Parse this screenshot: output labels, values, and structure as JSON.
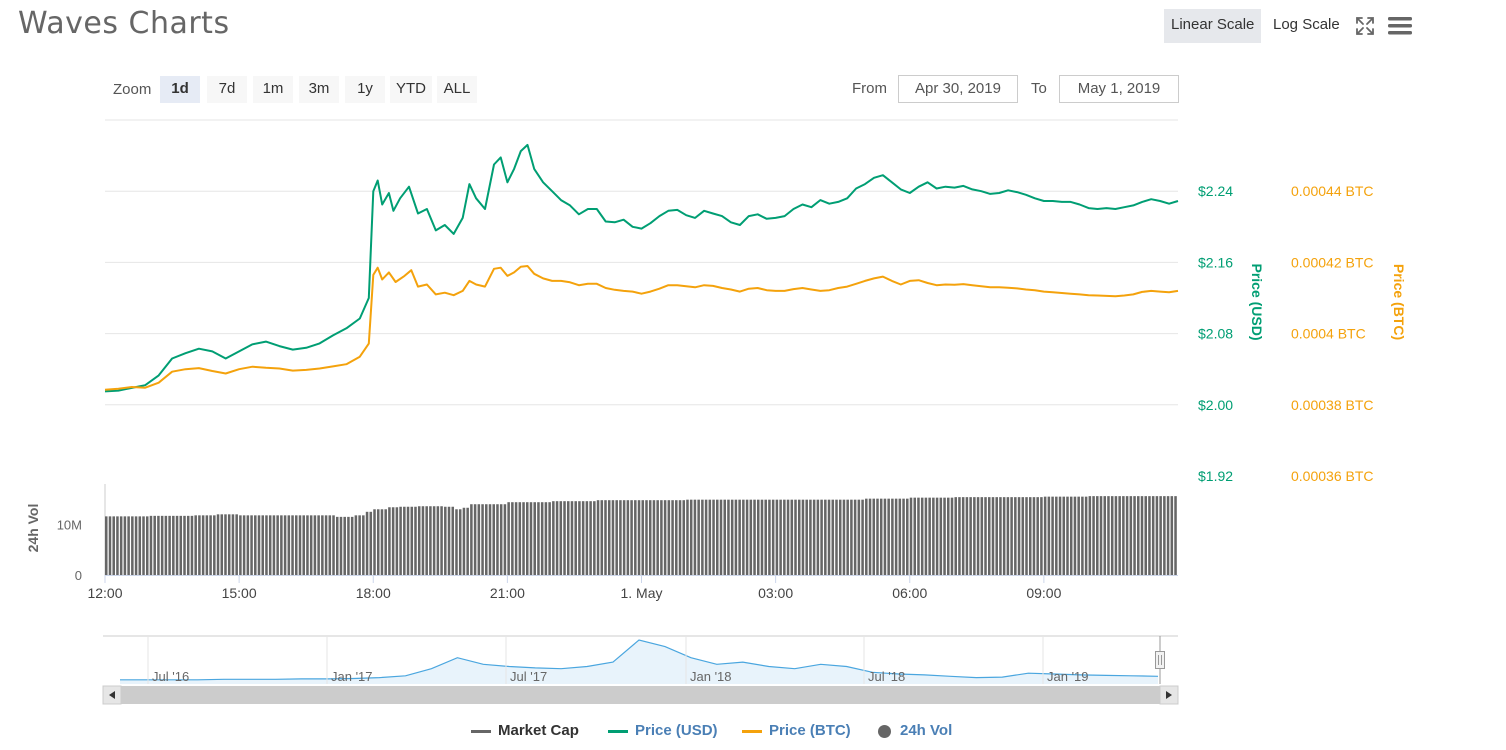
{
  "header": {
    "title": "Waves Charts",
    "scale_buttons": [
      {
        "label": "Linear Scale",
        "active": true
      },
      {
        "label": "Log Scale",
        "active": false
      }
    ],
    "icons": [
      "fullscreen-icon",
      "menu-icon"
    ]
  },
  "toolbar": {
    "zoom_label": "Zoom",
    "zoom_buttons": [
      {
        "label": "1d",
        "active": true
      },
      {
        "label": "7d",
        "active": false
      },
      {
        "label": "1m",
        "active": false
      },
      {
        "label": "3m",
        "active": false
      },
      {
        "label": "1y",
        "active": false
      },
      {
        "label": "YTD",
        "active": false
      },
      {
        "label": "ALL",
        "active": false
      }
    ],
    "from_label": "From",
    "from_value": "Apr 30, 2019",
    "to_label": "To",
    "to_value": "May 1, 2019"
  },
  "chart_data": {
    "type": "line",
    "x_ticks": [
      "12:00",
      "15:00",
      "18:00",
      "21:00",
      "1. May",
      "03:00",
      "06:00",
      "09:00"
    ],
    "x_tick_hours": [
      0,
      3,
      6,
      9,
      12,
      15,
      18,
      21
    ],
    "x_range_hours": [
      0,
      24
    ],
    "colors": {
      "usd": "#009e73",
      "btc": "#f4a20c",
      "vol": "#666666",
      "navigator": "#4aa6df",
      "market_cap": "#666666"
    },
    "price_usd": {
      "axis_label": "Price (USD)",
      "ylim": [
        1.92,
        2.32
      ],
      "ticks": [
        1.92,
        2.0,
        2.08,
        2.16,
        2.24
      ],
      "tick_labels": [
        "$1.92",
        "$2.00",
        "$2.08",
        "$2.16",
        "$2.24"
      ],
      "points": [
        [
          0,
          2.015
        ],
        [
          0.3,
          2.016
        ],
        [
          0.6,
          2.019
        ],
        [
          0.9,
          2.022
        ],
        [
          1.2,
          2.033
        ],
        [
          1.5,
          2.052
        ],
        [
          1.8,
          2.058
        ],
        [
          2.1,
          2.063
        ],
        [
          2.4,
          2.06
        ],
        [
          2.7,
          2.052
        ],
        [
          3.0,
          2.06
        ],
        [
          3.3,
          2.068
        ],
        [
          3.6,
          2.071
        ],
        [
          3.9,
          2.066
        ],
        [
          4.2,
          2.062
        ],
        [
          4.5,
          2.064
        ],
        [
          4.8,
          2.069
        ],
        [
          5.1,
          2.078
        ],
        [
          5.4,
          2.086
        ],
        [
          5.7,
          2.097
        ],
        [
          5.9,
          2.12
        ],
        [
          6.0,
          2.24
        ],
        [
          6.1,
          2.252
        ],
        [
          6.2,
          2.225
        ],
        [
          6.35,
          2.238
        ],
        [
          6.45,
          2.218
        ],
        [
          6.6,
          2.232
        ],
        [
          6.8,
          2.245
        ],
        [
          7.0,
          2.215
        ],
        [
          7.2,
          2.22
        ],
        [
          7.4,
          2.196
        ],
        [
          7.6,
          2.202
        ],
        [
          7.8,
          2.192
        ],
        [
          8.0,
          2.21
        ],
        [
          8.15,
          2.248
        ],
        [
          8.3,
          2.232
        ],
        [
          8.5,
          2.22
        ],
        [
          8.7,
          2.27
        ],
        [
          8.85,
          2.278
        ],
        [
          9.0,
          2.25
        ],
        [
          9.15,
          2.265
        ],
        [
          9.3,
          2.285
        ],
        [
          9.45,
          2.292
        ],
        [
          9.6,
          2.265
        ],
        [
          9.8,
          2.25
        ],
        [
          10.0,
          2.24
        ],
        [
          10.2,
          2.23
        ],
        [
          10.4,
          2.224
        ],
        [
          10.6,
          2.214
        ],
        [
          10.8,
          2.22
        ],
        [
          11.0,
          2.22
        ],
        [
          11.2,
          2.206
        ],
        [
          11.4,
          2.205
        ],
        [
          11.6,
          2.208
        ],
        [
          11.8,
          2.2
        ],
        [
          12.0,
          2.198
        ],
        [
          12.2,
          2.204
        ],
        [
          12.4,
          2.212
        ],
        [
          12.6,
          2.218
        ],
        [
          12.8,
          2.219
        ],
        [
          13.0,
          2.213
        ],
        [
          13.2,
          2.21
        ],
        [
          13.4,
          2.218
        ],
        [
          13.6,
          2.215
        ],
        [
          13.8,
          2.212
        ],
        [
          14.0,
          2.205
        ],
        [
          14.2,
          2.202
        ],
        [
          14.4,
          2.212
        ],
        [
          14.6,
          2.214
        ],
        [
          14.8,
          2.209
        ],
        [
          15.0,
          2.21
        ],
        [
          15.2,
          2.212
        ],
        [
          15.4,
          2.22
        ],
        [
          15.6,
          2.225
        ],
        [
          15.8,
          2.222
        ],
        [
          16.0,
          2.23
        ],
        [
          16.2,
          2.226
        ],
        [
          16.4,
          2.228
        ],
        [
          16.6,
          2.232
        ],
        [
          16.8,
          2.243
        ],
        [
          17.0,
          2.248
        ],
        [
          17.2,
          2.255
        ],
        [
          17.4,
          2.258
        ],
        [
          17.6,
          2.25
        ],
        [
          17.8,
          2.242
        ],
        [
          18.0,
          2.238
        ],
        [
          18.2,
          2.245
        ],
        [
          18.4,
          2.25
        ],
        [
          18.6,
          2.243
        ],
        [
          18.8,
          2.245
        ],
        [
          19.0,
          2.244
        ],
        [
          19.2,
          2.246
        ],
        [
          19.4,
          2.242
        ],
        [
          19.6,
          2.24
        ],
        [
          19.8,
          2.237
        ],
        [
          20.0,
          2.238
        ],
        [
          20.2,
          2.241
        ],
        [
          20.4,
          2.239
        ],
        [
          20.6,
          2.236
        ],
        [
          20.8,
          2.232
        ],
        [
          21.0,
          2.229
        ],
        [
          21.2,
          2.229
        ],
        [
          21.4,
          2.228
        ],
        [
          21.6,
          2.228
        ],
        [
          21.8,
          2.225
        ],
        [
          22.0,
          2.221
        ],
        [
          22.2,
          2.22
        ],
        [
          22.4,
          2.221
        ],
        [
          22.6,
          2.22
        ],
        [
          22.8,
          2.222
        ],
        [
          23.0,
          2.224
        ],
        [
          23.2,
          2.228
        ],
        [
          23.4,
          2.231
        ],
        [
          23.6,
          2.229
        ],
        [
          23.8,
          2.226
        ],
        [
          24.0,
          2.229
        ]
      ]
    },
    "price_btc": {
      "axis_label": "Price (BTC)",
      "ylim": [
        0.00036,
        0.00046
      ],
      "ticks": [
        0.00036,
        0.00038,
        0.0004,
        0.00042,
        0.00044
      ],
      "tick_labels": [
        "0.00036 BTC",
        "0.00038 BTC",
        "0.0004 BTC",
        "0.00042 BTC",
        "0.00044 BTC"
      ],
      "points": [
        [
          0,
          0.0003842
        ],
        [
          0.3,
          0.0003845
        ],
        [
          0.6,
          0.000385
        ],
        [
          0.9,
          0.0003848
        ],
        [
          1.2,
          0.0003862
        ],
        [
          1.5,
          0.0003893
        ],
        [
          1.8,
          0.00039
        ],
        [
          2.1,
          0.0003903
        ],
        [
          2.4,
          0.0003895
        ],
        [
          2.7,
          0.0003888
        ],
        [
          3.0,
          0.00039
        ],
        [
          3.3,
          0.0003907
        ],
        [
          3.6,
          0.0003904
        ],
        [
          3.9,
          0.0003902
        ],
        [
          4.2,
          0.0003896
        ],
        [
          4.5,
          0.0003898
        ],
        [
          4.8,
          0.0003902
        ],
        [
          5.1,
          0.0003908
        ],
        [
          5.4,
          0.0003914
        ],
        [
          5.7,
          0.0003935
        ],
        [
          5.9,
          0.0003972
        ],
        [
          6.0,
          0.0004165
        ],
        [
          6.1,
          0.0004185
        ],
        [
          6.2,
          0.0004152
        ],
        [
          6.35,
          0.0004172
        ],
        [
          6.5,
          0.0004145
        ],
        [
          6.7,
          0.0004162
        ],
        [
          6.85,
          0.0004178
        ],
        [
          7.0,
          0.0004132
        ],
        [
          7.2,
          0.0004138
        ],
        [
          7.4,
          0.000411
        ],
        [
          7.6,
          0.0004115
        ],
        [
          7.8,
          0.0004108
        ],
        [
          8.0,
          0.000412
        ],
        [
          8.15,
          0.0004148
        ],
        [
          8.3,
          0.0004138
        ],
        [
          8.5,
          0.0004132
        ],
        [
          8.7,
          0.0004182
        ],
        [
          8.85,
          0.0004185
        ],
        [
          9.0,
          0.0004162
        ],
        [
          9.15,
          0.0004172
        ],
        [
          9.3,
          0.0004188
        ],
        [
          9.45,
          0.000419
        ],
        [
          9.6,
          0.0004168
        ],
        [
          9.8,
          0.0004155
        ],
        [
          10.0,
          0.0004148
        ],
        [
          10.2,
          0.0004148
        ],
        [
          10.4,
          0.0004144
        ],
        [
          10.6,
          0.0004136
        ],
        [
          10.8,
          0.000414
        ],
        [
          11.0,
          0.000414
        ],
        [
          11.2,
          0.0004128
        ],
        [
          11.4,
          0.0004123
        ],
        [
          11.6,
          0.000412
        ],
        [
          11.8,
          0.0004118
        ],
        [
          12.0,
          0.0004112
        ],
        [
          12.2,
          0.0004118
        ],
        [
          12.4,
          0.0004126
        ],
        [
          12.6,
          0.0004136
        ],
        [
          12.8,
          0.0004136
        ],
        [
          13.0,
          0.0004133
        ],
        [
          13.2,
          0.000413
        ],
        [
          13.4,
          0.0004136
        ],
        [
          13.6,
          0.0004134
        ],
        [
          13.8,
          0.0004128
        ],
        [
          14.0,
          0.0004124
        ],
        [
          14.2,
          0.0004118
        ],
        [
          14.4,
          0.0004126
        ],
        [
          14.6,
          0.0004128
        ],
        [
          14.8,
          0.0004122
        ],
        [
          15.0,
          0.000412
        ],
        [
          15.2,
          0.000412
        ],
        [
          15.4,
          0.0004125
        ],
        [
          15.6,
          0.0004128
        ],
        [
          15.8,
          0.0004124
        ],
        [
          16.0,
          0.000412
        ],
        [
          16.2,
          0.0004122
        ],
        [
          16.4,
          0.0004128
        ],
        [
          16.6,
          0.0004132
        ],
        [
          16.8,
          0.000414
        ],
        [
          17.0,
          0.0004148
        ],
        [
          17.2,
          0.0004155
        ],
        [
          17.4,
          0.000416
        ],
        [
          17.6,
          0.0004148
        ],
        [
          17.8,
          0.0004138
        ],
        [
          18.0,
          0.0004148
        ],
        [
          18.2,
          0.000415
        ],
        [
          18.4,
          0.0004142
        ],
        [
          18.6,
          0.0004136
        ],
        [
          18.8,
          0.0004138
        ],
        [
          19.0,
          0.0004137
        ],
        [
          19.2,
          0.0004139
        ],
        [
          19.4,
          0.0004136
        ],
        [
          19.6,
          0.0004133
        ],
        [
          19.8,
          0.000413
        ],
        [
          20.0,
          0.000413
        ],
        [
          20.2,
          0.0004129
        ],
        [
          20.4,
          0.0004127
        ],
        [
          20.6,
          0.0004124
        ],
        [
          20.8,
          0.0004122
        ],
        [
          21.0,
          0.0004118
        ],
        [
          21.2,
          0.0004116
        ],
        [
          21.4,
          0.0004114
        ],
        [
          21.6,
          0.0004112
        ],
        [
          21.8,
          0.000411
        ],
        [
          22.0,
          0.0004108
        ],
        [
          22.2,
          0.0004107
        ],
        [
          22.4,
          0.0004106
        ],
        [
          22.6,
          0.0004105
        ],
        [
          22.8,
          0.0004107
        ],
        [
          23.0,
          0.000411
        ],
        [
          23.2,
          0.0004117
        ],
        [
          23.4,
          0.000412
        ],
        [
          23.6,
          0.0004118
        ],
        [
          23.8,
          0.0004116
        ],
        [
          24.0,
          0.000412
        ]
      ]
    },
    "volume": {
      "axis_label": "24h Vol",
      "ylim": [
        0,
        18000000
      ],
      "ticks": [
        0,
        10000000
      ],
      "tick_labels": [
        "0",
        "10M"
      ],
      "bars": [
        [
          0,
          11.6
        ],
        [
          1,
          11.7
        ],
        [
          2,
          11.8
        ],
        [
          2.5,
          12.0
        ],
        [
          3,
          11.8
        ],
        [
          4,
          11.8
        ],
        [
          5,
          11.8
        ],
        [
          5.2,
          11.5
        ],
        [
          5.6,
          11.8
        ],
        [
          5.8,
          12.5
        ],
        [
          6,
          13.0
        ],
        [
          6.3,
          13.4
        ],
        [
          6.6,
          13.5
        ],
        [
          7,
          13.6
        ],
        [
          7.6,
          13.5
        ],
        [
          7.8,
          13.0
        ],
        [
          8,
          13.3
        ],
        [
          8.2,
          14.0
        ],
        [
          9,
          14.4
        ],
        [
          10,
          14.6
        ],
        [
          11,
          14.8
        ],
        [
          12,
          14.8
        ],
        [
          13,
          14.9
        ],
        [
          14,
          14.9
        ],
        [
          15,
          14.9
        ],
        [
          16,
          14.9
        ],
        [
          17,
          15.1
        ],
        [
          18,
          15.3
        ],
        [
          19,
          15.4
        ],
        [
          20,
          15.4
        ],
        [
          21,
          15.5
        ],
        [
          22,
          15.6
        ],
        [
          23,
          15.6
        ],
        [
          24,
          15.6
        ]
      ],
      "bar_unit": "million"
    },
    "navigator": {
      "x_ticks": [
        "Jul '16",
        "Jan '17",
        "Jul '17",
        "Jan '18",
        "Jul '18",
        "Jan '19"
      ],
      "series": [
        0.5,
        0.5,
        0.5,
        0.5,
        0.6,
        0.6,
        0.6,
        0.7,
        0.7,
        0.8,
        1.0,
        1.4,
        3.0,
        5.5,
        4.0,
        3.5,
        3.2,
        3.0,
        3.5,
        4.5,
        9.5,
        8.0,
        5.5,
        4.0,
        4.5,
        3.5,
        3.0,
        4.0,
        3.5,
        2.2,
        1.8,
        1.6,
        1.3,
        1.0,
        1.1,
        2.0,
        1.8,
        1.6,
        1.5,
        1.4,
        1.3
      ]
    },
    "legend": [
      {
        "name": "Market Cap",
        "key": "market_cap",
        "marker": "line"
      },
      {
        "name": "Price (USD)",
        "key": "usd",
        "marker": "line"
      },
      {
        "name": "Price (BTC)",
        "key": "btc",
        "marker": "line"
      },
      {
        "name": "24h Vol",
        "key": "vol",
        "marker": "dot"
      }
    ]
  }
}
